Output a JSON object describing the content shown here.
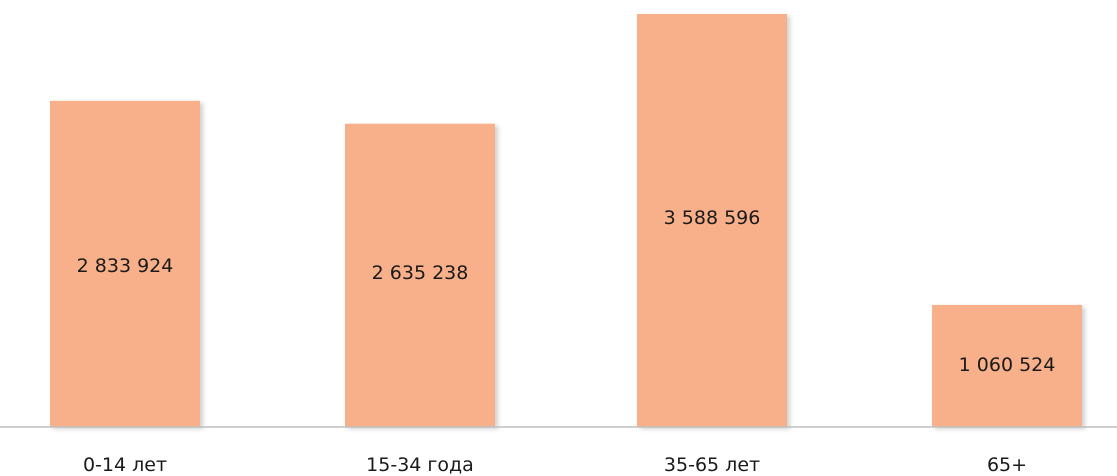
{
  "chart_data": {
    "type": "bar",
    "categories": [
      "0-14 лет",
      "15-34 года",
      "35-65 лет",
      "65+"
    ],
    "values": [
      2833924,
      2635238,
      3588596,
      1060524
    ],
    "value_labels": [
      "2 833 924",
      "2 635 238",
      "3 588 596",
      "1 060 524"
    ],
    "title": "",
    "xlabel": "",
    "ylabel": "",
    "ylim": [
      0,
      3588596
    ],
    "grid": false,
    "legend": "none",
    "bar_color": "#F7B08A",
    "axis_color": "#BFBFBF"
  }
}
